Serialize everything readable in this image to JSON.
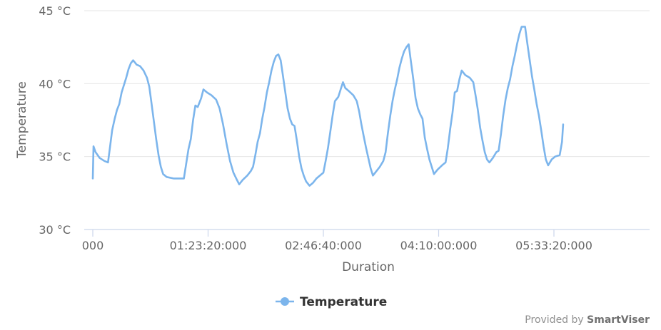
{
  "chart_data": {
    "type": "line",
    "xlabel": "Duration",
    "ylabel": "Temperature",
    "ylim": [
      30,
      45
    ],
    "xlim": [
      0,
      23600
    ],
    "y_ticks": [
      {
        "value": 30,
        "label": "30 °C"
      },
      {
        "value": 35,
        "label": "35 °C"
      },
      {
        "value": 40,
        "label": "40 °C"
      },
      {
        "value": 45,
        "label": "45 °C"
      }
    ],
    "x_ticks": [
      {
        "value": 0,
        "label": "000"
      },
      {
        "value": 5000,
        "label": "01:23:20:000"
      },
      {
        "value": 10000,
        "label": "02:46:40:000"
      },
      {
        "value": 15000,
        "label": "04:10:00:000"
      },
      {
        "value": 20000,
        "label": "05:33:20:000"
      }
    ],
    "grid": "horizontal",
    "legend": "bottom-center",
    "series": [
      {
        "name": "Temperature",
        "color": "#7cb5ec",
        "points": [
          [
            0,
            33.5
          ],
          [
            30,
            35.7
          ],
          [
            120,
            35.3
          ],
          [
            300,
            34.9
          ],
          [
            500,
            34.7
          ],
          [
            660,
            34.6
          ],
          [
            760,
            35.8
          ],
          [
            840,
            36.8
          ],
          [
            950,
            37.6
          ],
          [
            1050,
            38.2
          ],
          [
            1150,
            38.6
          ],
          [
            1250,
            39.4
          ],
          [
            1350,
            39.9
          ],
          [
            1450,
            40.4
          ],
          [
            1550,
            41.0
          ],
          [
            1650,
            41.4
          ],
          [
            1750,
            41.6
          ],
          [
            1900,
            41.3
          ],
          [
            2050,
            41.2
          ],
          [
            2200,
            40.9
          ],
          [
            2350,
            40.4
          ],
          [
            2450,
            39.8
          ],
          [
            2550,
            38.6
          ],
          [
            2650,
            37.4
          ],
          [
            2750,
            36.2
          ],
          [
            2850,
            35.1
          ],
          [
            2950,
            34.3
          ],
          [
            3050,
            33.8
          ],
          [
            3200,
            33.6
          ],
          [
            3500,
            33.5
          ],
          [
            3950,
            33.5
          ],
          [
            4050,
            34.5
          ],
          [
            4150,
            35.5
          ],
          [
            4250,
            36.2
          ],
          [
            4350,
            37.5
          ],
          [
            4450,
            38.5
          ],
          [
            4550,
            38.4
          ],
          [
            4700,
            39.0
          ],
          [
            4800,
            39.6
          ],
          [
            4950,
            39.4
          ],
          [
            5150,
            39.2
          ],
          [
            5350,
            38.9
          ],
          [
            5500,
            38.3
          ],
          [
            5650,
            37.2
          ],
          [
            5800,
            35.9
          ],
          [
            5950,
            34.7
          ],
          [
            6100,
            33.9
          ],
          [
            6250,
            33.4
          ],
          [
            6350,
            33.1
          ],
          [
            6500,
            33.4
          ],
          [
            6700,
            33.7
          ],
          [
            6850,
            34.0
          ],
          [
            6950,
            34.3
          ],
          [
            7050,
            35.1
          ],
          [
            7150,
            36.0
          ],
          [
            7250,
            36.6
          ],
          [
            7350,
            37.6
          ],
          [
            7450,
            38.4
          ],
          [
            7550,
            39.4
          ],
          [
            7650,
            40.1
          ],
          [
            7750,
            40.9
          ],
          [
            7850,
            41.5
          ],
          [
            7950,
            41.9
          ],
          [
            8050,
            42.0
          ],
          [
            8150,
            41.6
          ],
          [
            8250,
            40.5
          ],
          [
            8350,
            39.4
          ],
          [
            8450,
            38.3
          ],
          [
            8550,
            37.6
          ],
          [
            8650,
            37.2
          ],
          [
            8750,
            37.1
          ],
          [
            8850,
            36.1
          ],
          [
            8950,
            35.0
          ],
          [
            9050,
            34.2
          ],
          [
            9150,
            33.7
          ],
          [
            9250,
            33.3
          ],
          [
            9400,
            33.0
          ],
          [
            9550,
            33.2
          ],
          [
            9700,
            33.5
          ],
          [
            9850,
            33.7
          ],
          [
            10000,
            33.9
          ],
          [
            10100,
            34.7
          ],
          [
            10200,
            35.6
          ],
          [
            10300,
            36.7
          ],
          [
            10400,
            37.8
          ],
          [
            10500,
            38.8
          ],
          [
            10650,
            39.1
          ],
          [
            10750,
            39.6
          ],
          [
            10850,
            40.1
          ],
          [
            10950,
            39.7
          ],
          [
            11100,
            39.5
          ],
          [
            11300,
            39.2
          ],
          [
            11450,
            38.8
          ],
          [
            11550,
            38.1
          ],
          [
            11650,
            37.2
          ],
          [
            11750,
            36.4
          ],
          [
            11850,
            35.6
          ],
          [
            11950,
            34.9
          ],
          [
            12050,
            34.2
          ],
          [
            12150,
            33.7
          ],
          [
            12250,
            33.9
          ],
          [
            12450,
            34.3
          ],
          [
            12600,
            34.7
          ],
          [
            12700,
            35.3
          ],
          [
            12800,
            36.6
          ],
          [
            12900,
            37.8
          ],
          [
            13000,
            38.8
          ],
          [
            13100,
            39.6
          ],
          [
            13200,
            40.3
          ],
          [
            13300,
            41.1
          ],
          [
            13400,
            41.7
          ],
          [
            13500,
            42.2
          ],
          [
            13600,
            42.5
          ],
          [
            13700,
            42.7
          ],
          [
            13800,
            41.5
          ],
          [
            13900,
            40.3
          ],
          [
            14000,
            39.0
          ],
          [
            14100,
            38.3
          ],
          [
            14200,
            37.9
          ],
          [
            14300,
            37.6
          ],
          [
            14400,
            36.3
          ],
          [
            14500,
            35.5
          ],
          [
            14600,
            34.8
          ],
          [
            14700,
            34.3
          ],
          [
            14800,
            33.8
          ],
          [
            14950,
            34.1
          ],
          [
            15150,
            34.4
          ],
          [
            15300,
            34.6
          ],
          [
            15400,
            35.6
          ],
          [
            15500,
            36.9
          ],
          [
            15600,
            38.0
          ],
          [
            15700,
            39.4
          ],
          [
            15800,
            39.5
          ],
          [
            15900,
            40.3
          ],
          [
            16000,
            40.9
          ],
          [
            16150,
            40.6
          ],
          [
            16350,
            40.4
          ],
          [
            16500,
            40.1
          ],
          [
            16600,
            39.2
          ],
          [
            16700,
            38.2
          ],
          [
            16800,
            37.0
          ],
          [
            16900,
            36.1
          ],
          [
            17000,
            35.3
          ],
          [
            17100,
            34.8
          ],
          [
            17200,
            34.6
          ],
          [
            17350,
            34.9
          ],
          [
            17500,
            35.3
          ],
          [
            17600,
            35.4
          ],
          [
            17700,
            36.5
          ],
          [
            17800,
            37.8
          ],
          [
            17900,
            38.9
          ],
          [
            18000,
            39.7
          ],
          [
            18100,
            40.3
          ],
          [
            18200,
            41.2
          ],
          [
            18300,
            41.9
          ],
          [
            18400,
            42.7
          ],
          [
            18500,
            43.4
          ],
          [
            18600,
            43.9
          ],
          [
            18750,
            43.9
          ],
          [
            18850,
            42.7
          ],
          [
            18950,
            41.6
          ],
          [
            19050,
            40.5
          ],
          [
            19150,
            39.6
          ],
          [
            19250,
            38.6
          ],
          [
            19350,
            37.8
          ],
          [
            19450,
            36.8
          ],
          [
            19550,
            35.7
          ],
          [
            19650,
            34.8
          ],
          [
            19750,
            34.4
          ],
          [
            19900,
            34.8
          ],
          [
            20050,
            35.0
          ],
          [
            20250,
            35.1
          ],
          [
            20350,
            36.0
          ],
          [
            20400,
            37.2
          ]
        ]
      }
    ]
  },
  "credits": {
    "prefix": "Provided by",
    "brand": "SmartViser"
  }
}
